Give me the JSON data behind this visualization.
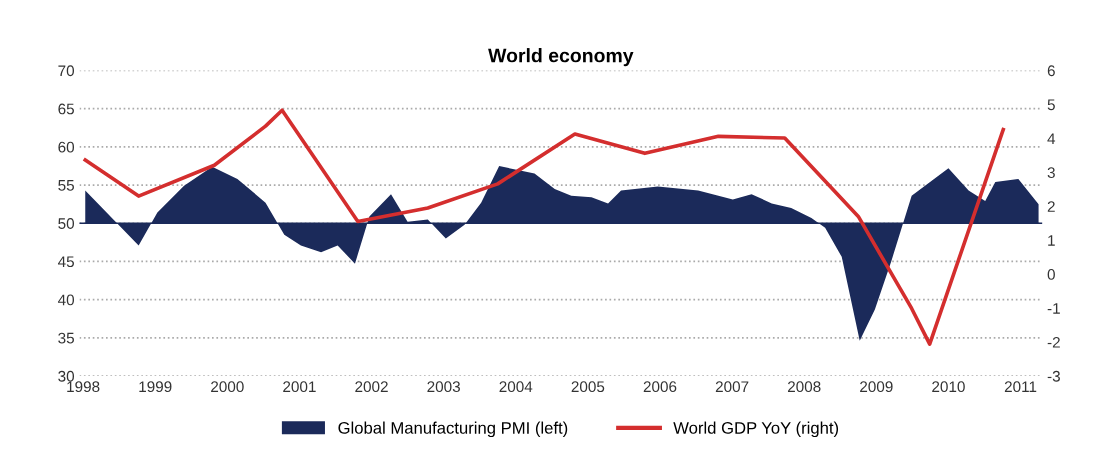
{
  "chart_data": {
    "type": "area",
    "title": "World economy",
    "xlim": [
      1997.95,
      2011.3
    ],
    "xticks": [
      1998,
      1999,
      2000,
      2001,
      2002,
      2003,
      2004,
      2005,
      2006,
      2007,
      2008,
      2009,
      2010,
      2011
    ],
    "ylim": [
      30,
      70
    ],
    "yticks": [
      30,
      35,
      40,
      45,
      50,
      55,
      60,
      65,
      70
    ],
    "y2lim": [
      -3,
      6
    ],
    "y2ticks": [
      -3,
      -2,
      -1,
      0,
      1,
      2,
      3,
      4,
      5,
      6
    ],
    "grid": "y",
    "legend": "bottom",
    "ref_lines": [
      {
        "axis": "y",
        "value": 50,
        "color": "#1b2a5a"
      }
    ],
    "series": [
      {
        "name": "Global Manufacturing PMI (left)",
        "color": "#1b2a5a",
        "x": [
          1998.03,
          1998.77,
          1999.03,
          1999.4,
          1999.79,
          2000.14,
          2000.53,
          2000.79,
          2001.02,
          2001.3,
          2001.53,
          2001.77,
          2001.97,
          2002.27,
          2002.5,
          2002.78,
          2003.03,
          2003.29,
          2003.52,
          2003.77,
          2004.26,
          2004.54,
          2004.77,
          2005.05,
          2005.28,
          2005.46,
          2005.97,
          2006.53,
          2007.01,
          2007.27,
          2007.55,
          2007.82,
          2008.1,
          2008.29,
          2008.52,
          2008.77,
          2008.98,
          2009.21,
          2009.49,
          2010.0,
          2010.28,
          2010.51,
          2010.65,
          2010.97,
          2011.25
        ],
        "values": [
          54.3,
          47.1,
          51.4,
          54.9,
          57.4,
          55.8,
          52.7,
          48.5,
          47.1,
          46.2,
          47.1,
          44.7,
          50.9,
          53.8,
          50.2,
          50.5,
          48.0,
          49.8,
          52.7,
          57.5,
          56.5,
          54.5,
          53.6,
          53.4,
          52.6,
          54.3,
          54.8,
          54.3,
          53.1,
          53.8,
          52.6,
          52.0,
          50.7,
          49.4,
          45.6,
          34.6,
          38.7,
          45.1,
          53.6,
          57.2,
          54.3,
          52.9,
          55.4,
          55.8,
          52.5
        ]
      },
      {
        "name": "World GDP YoY (right)",
        "type": "line",
        "axis": "y2",
        "color": "#d42e2e",
        "marker": "none",
        "line_style": "solid",
        "x": [
          1998.03,
          1998.77,
          1999.82,
          2000.53,
          2000.76,
          2001.81,
          2002.78,
          2003.75,
          2004.82,
          2005.79,
          2006.81,
          2007.73,
          2008.75,
          2009.49,
          2009.74,
          2010.76
        ],
        "values": [
          3.36,
          2.3,
          3.21,
          4.36,
          4.83,
          1.55,
          1.95,
          2.66,
          4.13,
          3.56,
          4.06,
          4.01,
          1.7,
          -1.01,
          -2.06,
          4.26
        ]
      }
    ]
  }
}
